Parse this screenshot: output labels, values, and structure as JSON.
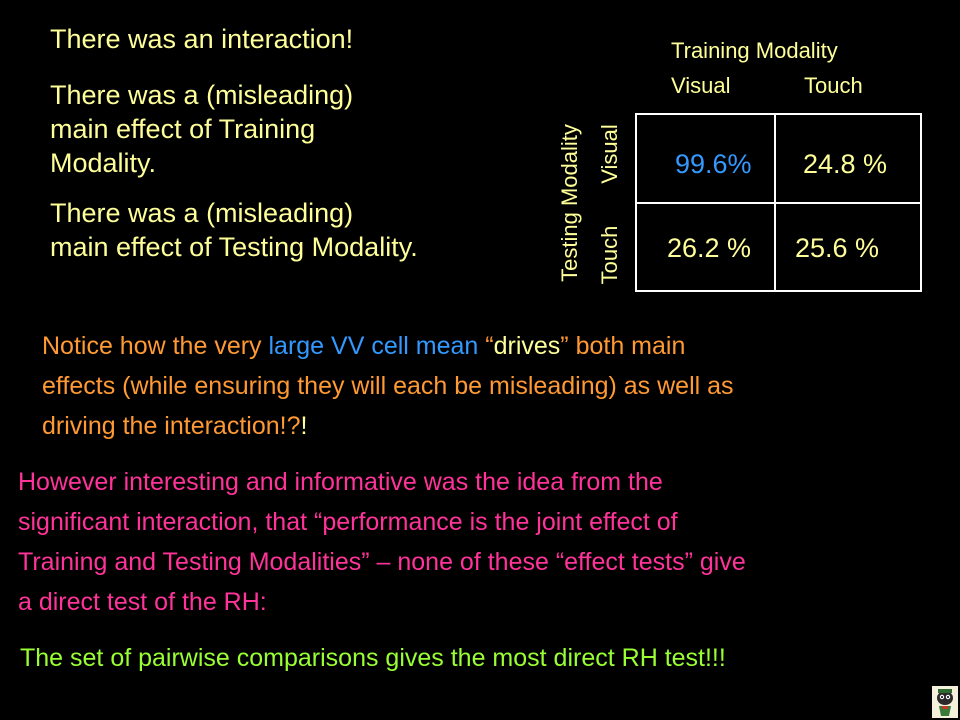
{
  "top_left": {
    "line1": "There was an interaction!",
    "line2a": "There was a (misleading)",
    "line2b": "main effect of Training",
    "line2c": "Modality.",
    "line3a": "There was a (misleading)",
    "line3b": "main effect of Testing Modality."
  },
  "table": {
    "col_header_title": "Training Modality",
    "col_visual": "Visual",
    "col_touch": "Touch",
    "row_header_title": "Testing Modality",
    "row_visual": "Visual",
    "row_touch": "Touch",
    "cell_vv": "99.6%",
    "cell_vt": "24.8 %",
    "cell_tv": "26.2 %",
    "cell_tt": "25.6 %"
  },
  "notice": {
    "l1_a": "Notice how the very ",
    "l1_b": "large VV cell mean",
    "l1_c": " “",
    "l1_d": "drives",
    "l1_e": "” both main",
    "l2": "effects (while ensuring they will each be misleading) as well as",
    "l3_a": "driving the interaction!?",
    "l3_b": "!"
  },
  "however": {
    "l1": "However interesting and informative was the idea from the",
    "l2": "significant interaction, that “performance is the joint effect of",
    "l3": "Training and Testing Modalities” – none of these “effect tests” give",
    "l4": "a direct test of the RH:"
  },
  "conclusion": "The set of pairwise comparisons gives the most direct RH test!!!",
  "colors": {
    "background": "#000000",
    "top_text": "#ffff99",
    "notice": "#ff9933",
    "highlight": "#3399ff",
    "however": "#ff3399",
    "conclusion": "#99ff33"
  },
  "icons": {
    "corner_logo": "cartoon-character-icon"
  }
}
